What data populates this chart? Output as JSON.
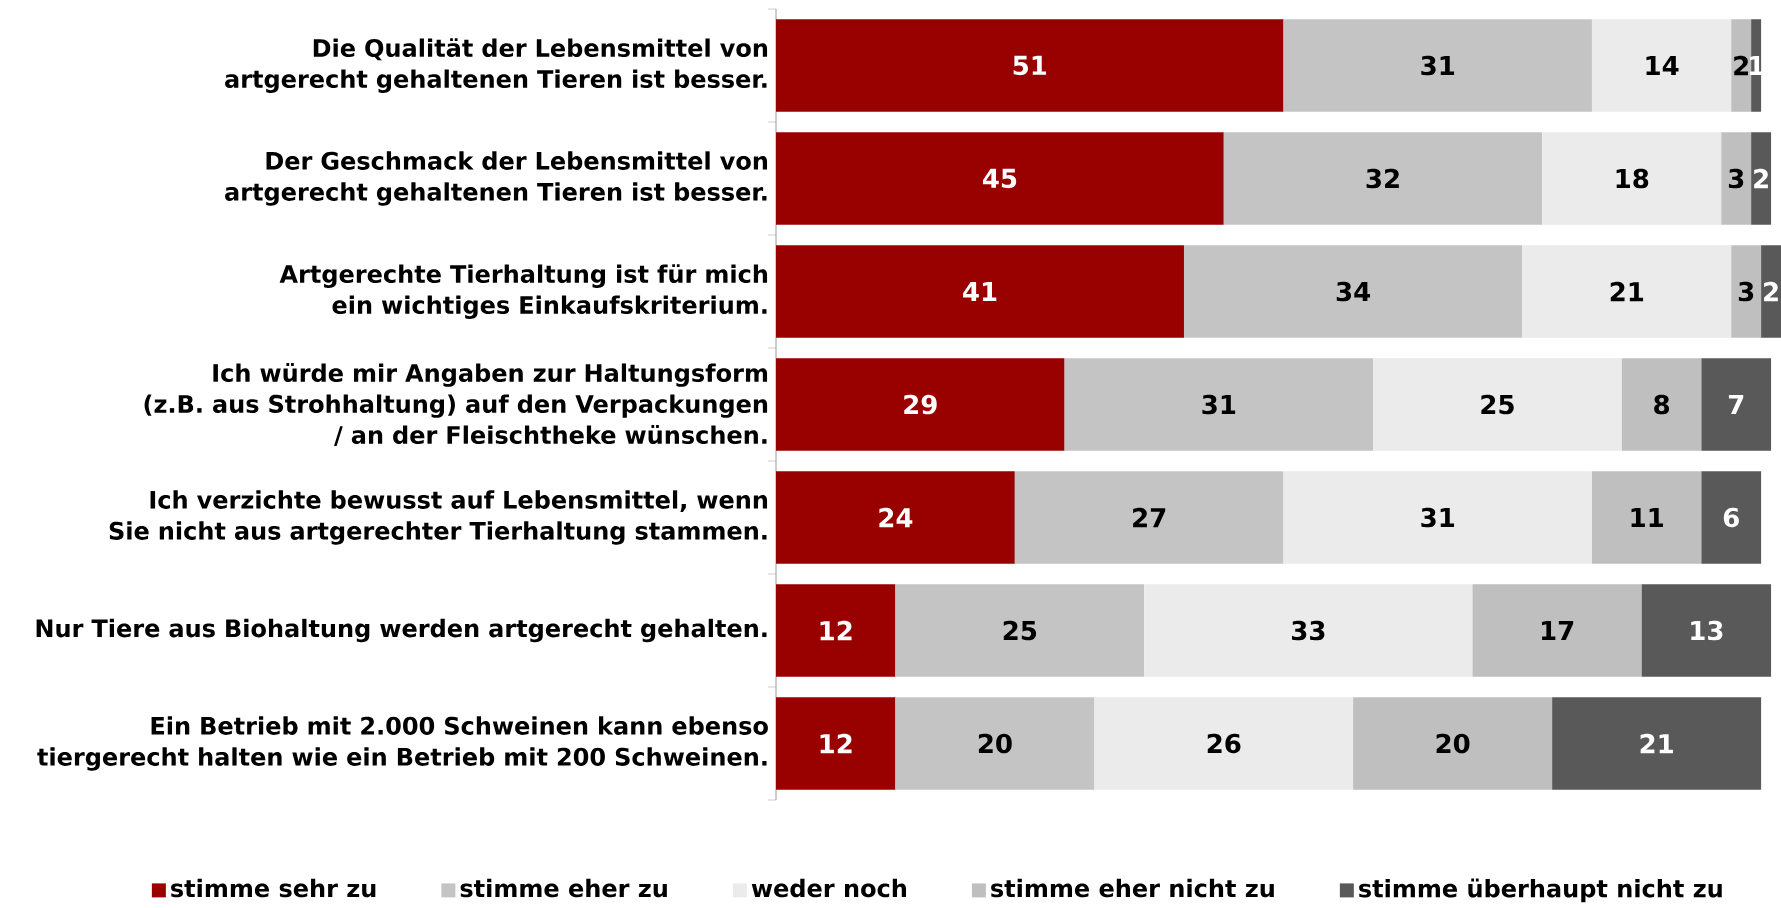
{
  "chart_data": {
    "type": "bar",
    "orientation": "horizontal",
    "stacked": true,
    "data_labels": true,
    "legend": "bottom",
    "categories": [
      "Die Qualität der Lebensmittel von artgerecht gehaltenen Tieren ist besser.",
      "Der Geschmack der Lebensmittel von artgerecht gehaltenen Tieren ist besser.",
      "Artgerechte Tierhaltung ist für mich ein wichtiges Einkaufskriterium.",
      "Ich würde mir Angaben zur Haltungsform (z.B. aus Strohhaltung) auf den Verpackungen / an der Fleischtheke wünschen.",
      "Ich verzichte bewusst auf Lebensmittel, wenn Sie nicht aus artgerechter Tierhaltung stammen.",
      "Nur Tiere aus Biohaltung werden artgerecht gehalten.",
      "Ein Betrieb mit 2.000 Schweinen kann ebenso tiergerecht halten wie ein Betrieb mit 200 Schweinen."
    ],
    "series": [
      {
        "name": "stimme sehr zu",
        "color": "#990000",
        "values": [
          51,
          45,
          41,
          29,
          24,
          12,
          12
        ]
      },
      {
        "name": "stimme eher zu",
        "color": "#c4c4c4",
        "values": [
          31,
          32,
          34,
          31,
          27,
          25,
          20
        ]
      },
      {
        "name": "weder noch",
        "color": "#ebebeb",
        "values": [
          14,
          18,
          21,
          25,
          31,
          33,
          26
        ]
      },
      {
        "name": "stimme eher nicht zu",
        "color": "#bfbfbf",
        "values": [
          2,
          3,
          3,
          8,
          11,
          17,
          20
        ]
      },
      {
        "name": "stimme überhaupt nicht zu",
        "color": "#595959",
        "values": [
          1,
          2,
          2,
          7,
          6,
          13,
          21
        ]
      }
    ]
  }
}
